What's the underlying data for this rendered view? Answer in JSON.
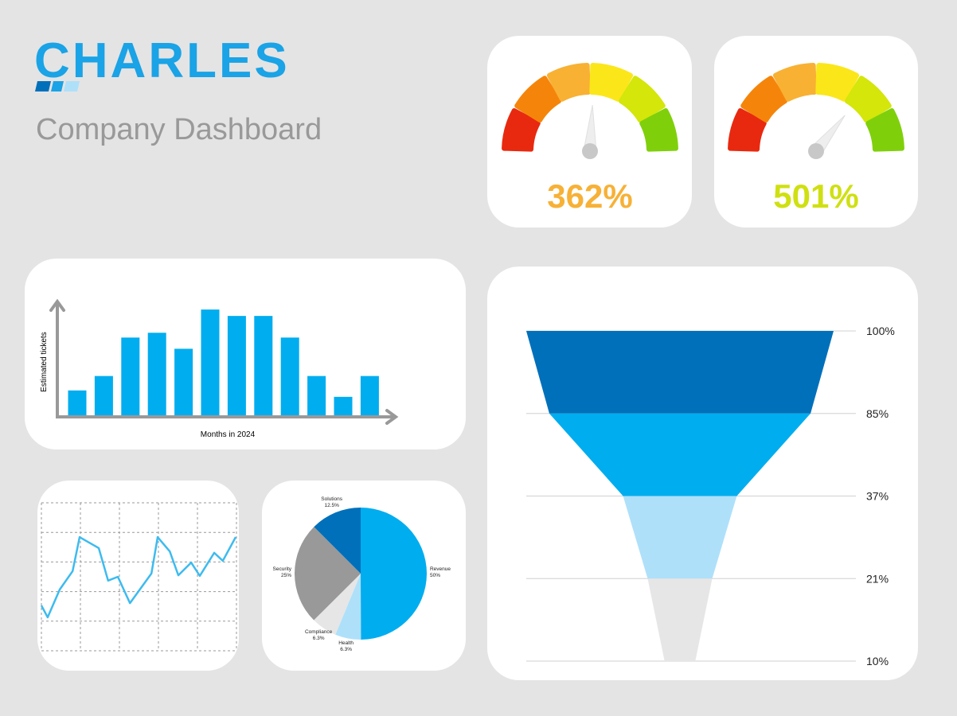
{
  "header": {
    "logo": "CHARLES",
    "title": "Company Dashboard"
  },
  "chart_data": [
    {
      "type": "gauge",
      "values": [
        362
      ],
      "value_labels": [
        "362%"
      ],
      "color": "#f7b136",
      "lim": [
        0,
        700
      ],
      "segment_colors": [
        "#e8290f",
        "#f5850a",
        "#f8b133",
        "#fbe61a",
        "#d4e60a",
        "#7fd00b"
      ]
    },
    {
      "type": "gauge",
      "values": [
        501
      ],
      "value_labels": [
        "501%"
      ],
      "color": "#cfe011",
      "lim": [
        0,
        700
      ],
      "segment_colors": [
        "#e8290f",
        "#f5850a",
        "#f8b133",
        "#fbe61a",
        "#d4e60a",
        "#7fd00b"
      ]
    },
    {
      "type": "bar",
      "x_label": "Months in 2024",
      "y_label": "Estimated tickets",
      "categories": [
        null,
        null,
        null,
        null,
        null,
        null,
        null,
        null,
        null,
        null,
        null,
        null
      ],
      "values": [
        33,
        51,
        99,
        105,
        85,
        134,
        126,
        126,
        99,
        51,
        25,
        51
      ],
      "color": "#00adef",
      "ylim": [
        0,
        145
      ]
    },
    {
      "type": "line",
      "x": [
        0,
        0.16,
        0.47,
        0.8,
        0.98,
        1.47,
        1.71,
        1.96,
        2.27,
        2.82,
        2.98,
        3.29,
        3.51,
        3.84,
        4.06,
        4.43,
        4.65,
        4.98
      ],
      "values": [
        1.53,
        1.13,
        2.07,
        2.69,
        3.84,
        3.47,
        2.37,
        2.5,
        1.61,
        2.61,
        3.84,
        3.36,
        2.55,
        2.98,
        2.53,
        3.31,
        3.04,
        3.84
      ],
      "color": "#3dbbef",
      "xlim": [
        0,
        5
      ],
      "ylim": [
        0,
        5
      ],
      "xticks": [
        0,
        1,
        2,
        3,
        4,
        5
      ],
      "yticks": [
        0,
        1,
        2,
        3,
        4,
        5
      ],
      "grid": true
    },
    {
      "type": "pie",
      "categories": [
        "Revenue",
        "Health",
        "Compliance",
        "Security",
        "Solutions"
      ],
      "values": [
        50,
        6.3,
        6.3,
        25,
        12.5
      ],
      "value_labels": [
        "50%",
        "6.3%",
        "6.3%",
        "25%",
        "12.5%"
      ],
      "colors": [
        "#00adef",
        "#aee0fa",
        "#e6e6e6",
        "#999999",
        "#0070bb"
      ]
    },
    {
      "type": "funnel",
      "values": [
        100,
        85,
        37,
        21,
        10
      ],
      "value_labels": [
        "100%",
        "85%",
        "37%",
        "21%",
        "10%"
      ],
      "colors": [
        "#0070bb",
        "#00adef",
        "#aee0fa",
        "#e6e6e6"
      ]
    }
  ]
}
